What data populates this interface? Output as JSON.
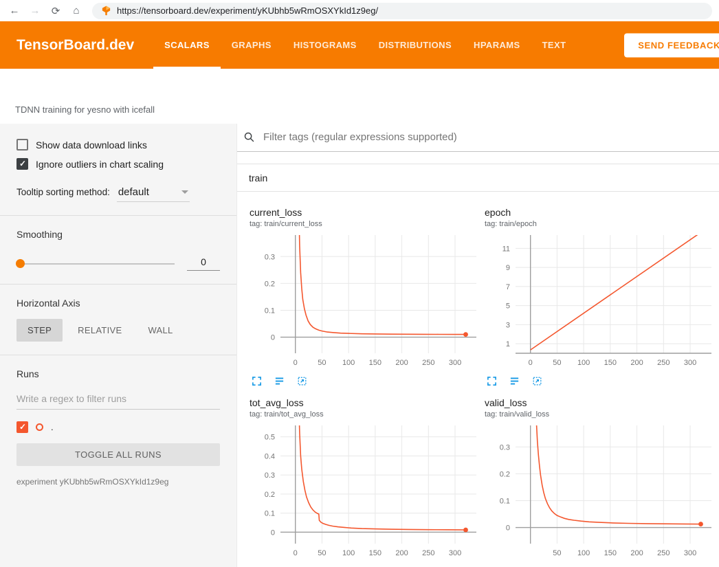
{
  "browser": {
    "url": "https://tensorboard.dev/experiment/yKUbhb5wRmOSXYkId1z9eg/",
    "glyphs": {
      "back": "←",
      "forward": "→",
      "reload": "⟳",
      "home": "⌂"
    }
  },
  "header": {
    "brand": "TensorBoard.dev",
    "tabs": [
      {
        "label": "SCALARS",
        "active": true
      },
      {
        "label": "GRAPHS",
        "active": false
      },
      {
        "label": "HISTOGRAMS",
        "active": false
      },
      {
        "label": "DISTRIBUTIONS",
        "active": false
      },
      {
        "label": "HPARAMS",
        "active": false
      },
      {
        "label": "TEXT",
        "active": false
      }
    ],
    "feedback_button": "SEND FEEDBACK"
  },
  "experiment": {
    "title": "TDNN training for yesno with icefall",
    "name": "experiment yKUbhb5wRmOSXYkId1z9eg"
  },
  "sidebar": {
    "show_download": {
      "label": "Show data download links",
      "checked": false
    },
    "ignore_outliers": {
      "label": "Ignore outliers in chart scaling",
      "checked": true
    },
    "tooltip_sorting": {
      "label": "Tooltip sorting method:",
      "value": "default"
    },
    "smoothing": {
      "label": "Smoothing",
      "value": "0"
    },
    "horizontal_axis": {
      "label": "Horizontal Axis",
      "options": [
        "STEP",
        "RELATIVE",
        "WALL"
      ],
      "selected": "STEP"
    },
    "runs": {
      "label": "Runs",
      "filter_placeholder": "Write a regex to filter runs",
      "run_label": ".",
      "checked": true,
      "toggle_button": "TOGGLE ALL RUNS"
    }
  },
  "main": {
    "filter_placeholder": "Filter tags (regular expressions supported)",
    "section": "train",
    "chart_toolbar_icons": [
      "expand-chart-icon",
      "data-table-icon",
      "fit-domain-icon"
    ]
  },
  "colors": {
    "header_orange": "#f77b00",
    "run": "#f4572e",
    "accent": "#f57c00",
    "icon_blue": "#1398e5",
    "grid": "#e8e8e8",
    "axis": "#9e9e9e"
  },
  "chart_data": [
    {
      "type": "line",
      "title": "current_loss",
      "tag": "tag: train/current_loss",
      "xlim": [
        -28,
        340
      ],
      "ylim": [
        -0.06,
        0.38
      ],
      "xticks": [
        0,
        50,
        100,
        150,
        200,
        250,
        300
      ],
      "yticks": [
        0,
        0.1,
        0.2,
        0.3
      ],
      "end_dot": true,
      "series": [
        {
          "name": ".",
          "points": [
            [
              6,
              0.55
            ],
            [
              8,
              0.34
            ],
            [
              10,
              0.24
            ],
            [
              12,
              0.18
            ],
            [
              14,
              0.14
            ],
            [
              17,
              0.105
            ],
            [
              20,
              0.082
            ],
            [
              24,
              0.06
            ],
            [
              28,
              0.047
            ],
            [
              33,
              0.037
            ],
            [
              38,
              0.031
            ],
            [
              44,
              0.026
            ],
            [
              50,
              0.023
            ],
            [
              60,
              0.019
            ],
            [
              72,
              0.017
            ],
            [
              85,
              0.015
            ],
            [
              100,
              0.014
            ],
            [
              125,
              0.0125
            ],
            [
              150,
              0.0118
            ],
            [
              180,
              0.0112
            ],
            [
              210,
              0.0108
            ],
            [
              240,
              0.0105
            ],
            [
              270,
              0.0103
            ],
            [
              300,
              0.0102
            ],
            [
              320,
              0.0101
            ]
          ]
        }
      ]
    },
    {
      "type": "line",
      "title": "epoch",
      "tag": "tag: train/epoch",
      "xlim": [
        -28,
        340
      ],
      "ylim": [
        0,
        12.4
      ],
      "xticks": [
        0,
        50,
        100,
        150,
        200,
        250,
        300
      ],
      "yticks": [
        1,
        3,
        5,
        7,
        9,
        11
      ],
      "end_dot": false,
      "series": [
        {
          "name": ".",
          "points": [
            [
              0,
              0.35
            ],
            [
              322,
              12.75
            ]
          ]
        }
      ]
    },
    {
      "type": "line",
      "title": "tot_avg_loss",
      "tag": "tag: train/tot_avg_loss",
      "xlim": [
        -28,
        340
      ],
      "ylim": [
        -0.06,
        0.56
      ],
      "xticks": [
        0,
        50,
        100,
        150,
        200,
        250,
        300
      ],
      "yticks": [
        0,
        0.1,
        0.2,
        0.3,
        0.4,
        0.5
      ],
      "end_dot": true,
      "series": [
        {
          "name": ".",
          "points": [
            [
              6,
              0.72
            ],
            [
              8,
              0.52
            ],
            [
              10,
              0.4
            ],
            [
              12,
              0.33
            ],
            [
              15,
              0.265
            ],
            [
              18,
              0.22
            ],
            [
              21,
              0.185
            ],
            [
              25,
              0.155
            ],
            [
              29,
              0.132
            ],
            [
              33,
              0.117
            ],
            [
              37,
              0.106
            ],
            [
              41,
              0.099
            ],
            [
              44,
              0.095
            ],
            [
              45,
              0.062
            ],
            [
              48,
              0.052
            ],
            [
              52,
              0.046
            ],
            [
              57,
              0.041
            ],
            [
              63,
              0.036
            ],
            [
              70,
              0.032
            ],
            [
              80,
              0.028
            ],
            [
              92,
              0.025
            ],
            [
              105,
              0.022
            ],
            [
              125,
              0.019
            ],
            [
              150,
              0.017
            ],
            [
              180,
              0.0155
            ],
            [
              215,
              0.0142
            ],
            [
              250,
              0.0133
            ],
            [
              285,
              0.0127
            ],
            [
              310,
              0.0123
            ],
            [
              320,
              0.0122
            ]
          ]
        }
      ]
    },
    {
      "type": "line",
      "title": "valid_loss",
      "tag": "tag: train/valid_loss",
      "xlim": [
        -28,
        340
      ],
      "ylim": [
        -0.06,
        0.38
      ],
      "xticks": [
        50,
        100,
        150,
        200,
        250,
        300
      ],
      "yticks": [
        0,
        0.1,
        0.2,
        0.3
      ],
      "end_dot": true,
      "series": [
        {
          "name": ".",
          "points": [
            [
              9,
              0.52
            ],
            [
              11,
              0.4
            ],
            [
              13,
              0.32
            ],
            [
              15,
              0.27
            ],
            [
              17,
              0.228
            ],
            [
              19,
              0.195
            ],
            [
              22,
              0.158
            ],
            [
              25,
              0.13
            ],
            [
              28,
              0.108
            ],
            [
              32,
              0.088
            ],
            [
              36,
              0.073
            ],
            [
              40,
              0.062
            ],
            [
              45,
              0.052
            ],
            [
              50,
              0.045
            ],
            [
              57,
              0.039
            ],
            [
              64,
              0.034
            ],
            [
              72,
              0.03
            ],
            [
              82,
              0.027
            ],
            [
              95,
              0.024
            ],
            [
              110,
              0.021
            ],
            [
              130,
              0.019
            ],
            [
              155,
              0.017
            ],
            [
              185,
              0.0155
            ],
            [
              220,
              0.0145
            ],
            [
              255,
              0.0137
            ],
            [
              290,
              0.0131
            ],
            [
              320,
              0.0127
            ]
          ]
        }
      ]
    }
  ]
}
